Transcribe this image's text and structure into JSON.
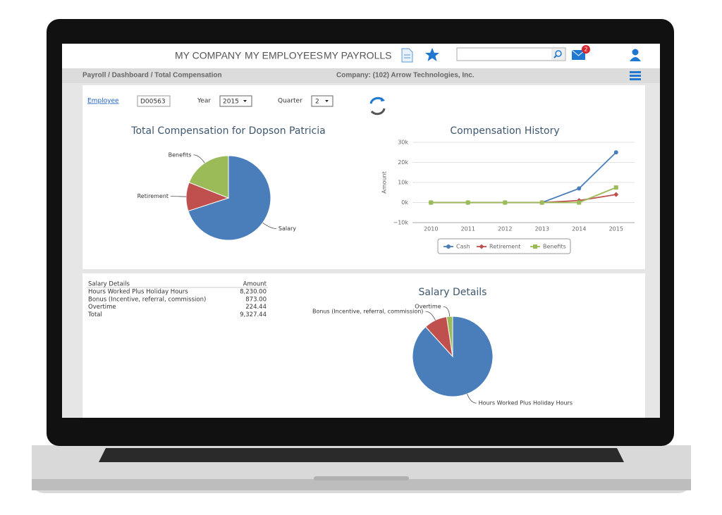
{
  "nav": {
    "items": [
      "MY COMPANY",
      "MY EMPLOYEES",
      "MY PAYROLLS"
    ],
    "mail_badge": "2"
  },
  "breadcrumb": {
    "path": "Payroll / Dashboard / Total Compensation",
    "company": "Company: (102) Arrow Technologies, Inc."
  },
  "filters": {
    "employee_link": "Employee",
    "employee_id": "D00563",
    "year_label": "Year",
    "year": "2015",
    "quarter_label": "Quarter",
    "quarter": "2"
  },
  "table": {
    "header": [
      "Salary Details",
      "Amount"
    ],
    "rows": [
      [
        "Hours Worked Plus Holiday Hours",
        "8,230.00"
      ],
      [
        "Bonus (Incentive, referral, commission)",
        "873.00"
      ],
      [
        "Overtime",
        "224.44"
      ],
      [
        "Total",
        "9,327.44"
      ]
    ]
  },
  "chart_data": [
    {
      "type": "pie",
      "title": "Total Compensation for Dopson Patricia",
      "categories": [
        "Salary",
        "Retirement",
        "Benefits"
      ],
      "values": [
        70,
        11,
        19
      ],
      "colors": [
        "#4a7ebb",
        "#c0504d",
        "#9bbb59"
      ]
    },
    {
      "type": "line",
      "title": "Compensation History",
      "y_label": "Amount",
      "categories": [
        "2010",
        "2011",
        "2012",
        "2013",
        "2014",
        "2015"
      ],
      "ylim": [
        -10000,
        30000
      ],
      "yticks": [
        {
          "value": -10000,
          "label": "−10k"
        },
        {
          "value": 0,
          "label": "0k"
        },
        {
          "value": 10000,
          "label": "10k"
        },
        {
          "value": 20000,
          "label": "20k"
        },
        {
          "value": 30000,
          "label": "30k"
        }
      ],
      "grid": true,
      "legend": "bottom",
      "series": [
        {
          "name": "Cash",
          "color": "#4a7ebb",
          "marker": "circle",
          "values": [
            0,
            0,
            0,
            0,
            7000,
            25000
          ]
        },
        {
          "name": "Retirement",
          "color": "#c0504d",
          "marker": "diamond",
          "values": [
            0,
            0,
            0,
            0,
            1000,
            4000
          ]
        },
        {
          "name": "Benefits",
          "color": "#9bbb59",
          "marker": "square",
          "values": [
            0,
            0,
            0,
            0,
            0,
            7500
          ]
        }
      ]
    },
    {
      "type": "pie",
      "title": "Salary Details",
      "categories": [
        "Hours Worked Plus Holiday Hours",
        "Bonus (Incentive, referral, commission)",
        "Overtime"
      ],
      "values": [
        8230,
        873,
        224.44
      ],
      "colors": [
        "#4a7ebb",
        "#c0504d",
        "#9bbb59"
      ]
    }
  ]
}
